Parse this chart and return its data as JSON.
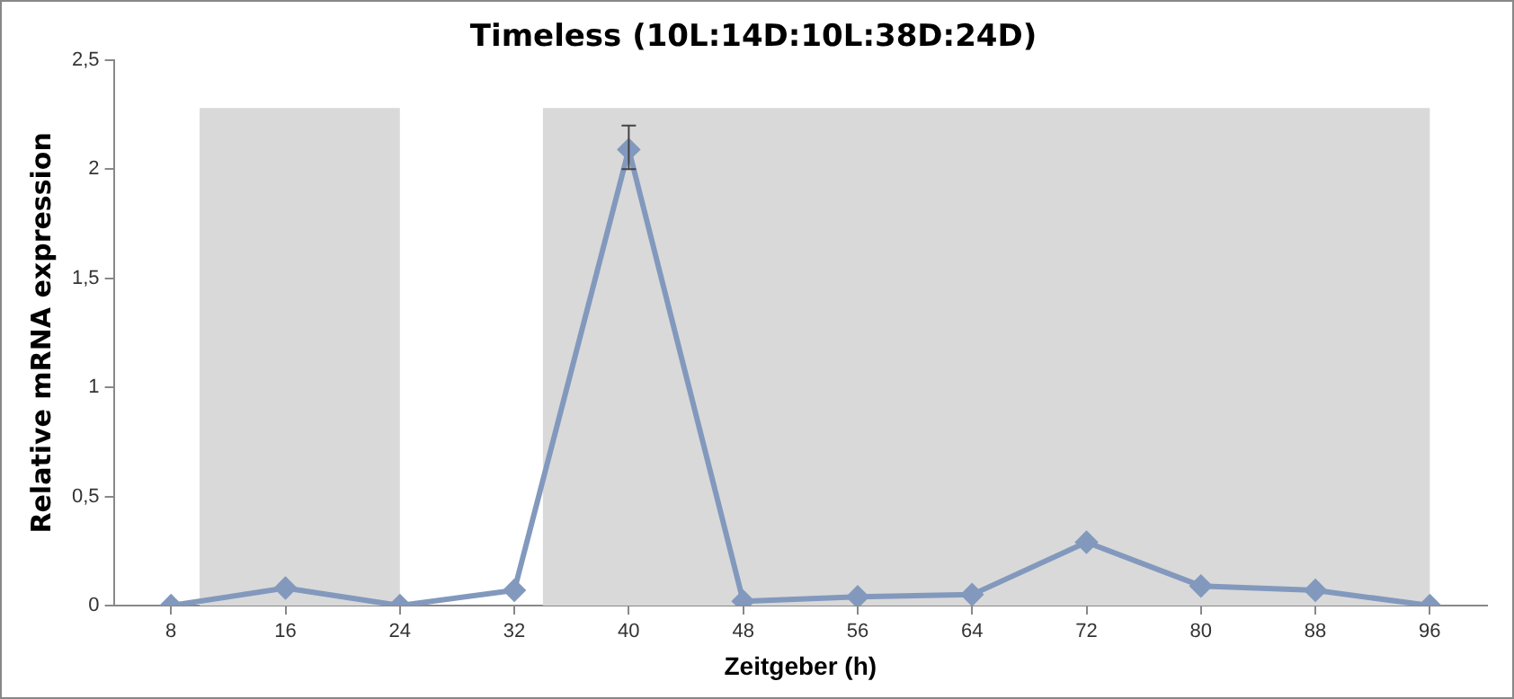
{
  "chart_data": {
    "type": "line",
    "title": "Timeless (10L:14D:10L:38D:24D)",
    "xlabel": "Zeitgeber (h)",
    "ylabel": "Relative mRNA expression",
    "x": [
      8,
      16,
      24,
      32,
      40,
      48,
      56,
      64,
      72,
      80,
      88,
      96
    ],
    "series": [
      {
        "color": "#8299bd",
        "values": [
          0,
          0.08,
          0,
          0.07,
          2.09,
          0.02,
          0.04,
          0.05,
          0.29,
          0.09,
          0.07,
          0
        ],
        "errors": [
          null,
          null,
          null,
          null,
          [
            2.0,
            2.2
          ],
          null,
          null,
          null,
          null,
          null,
          null,
          null
        ]
      }
    ],
    "xlim": [
      4,
      100
    ],
    "xticks": [
      8,
      16,
      24,
      32,
      40,
      48,
      56,
      64,
      72,
      80,
      88,
      96
    ],
    "ylim": [
      0,
      2.5
    ],
    "yticks": [
      0,
      {
        "value": 0.5,
        "label": "0,5"
      },
      1,
      {
        "value": 1.5,
        "label": "1,5"
      },
      2,
      {
        "value": 2.5,
        "label": "2,5"
      }
    ],
    "bands": [
      {
        "axis": "x",
        "from": 10,
        "to": 24,
        "color": "#d9d9d9"
      },
      {
        "axis": "x",
        "from": 34,
        "to": 96,
        "color": "#d9d9d9"
      }
    ],
    "grid": false,
    "legend": false,
    "marker": "diamond",
    "line_style": "solid"
  }
}
